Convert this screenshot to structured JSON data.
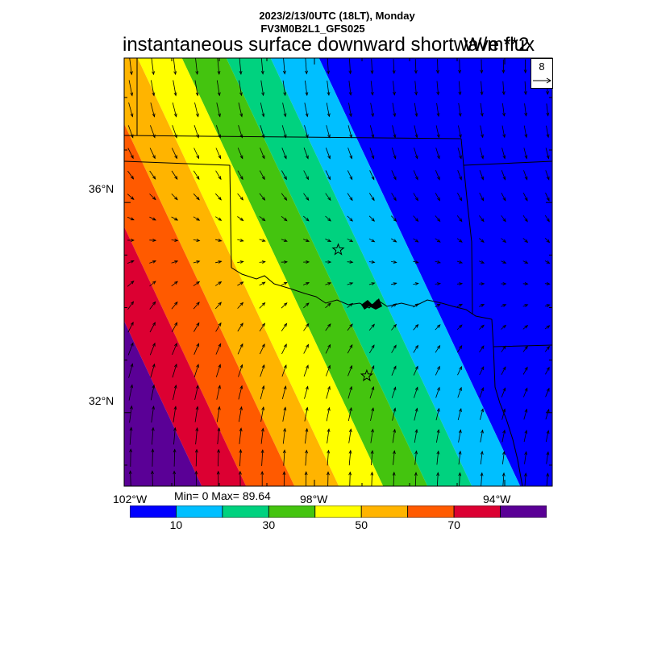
{
  "header": {
    "line1": "2023/2/13/0UTC (18LT), Monday",
    "line2": "FV3M0B2L1_GFS025",
    "title": "instantaneous surface downward shortwave flux",
    "units": "W/m**2"
  },
  "stats": "Min= 0 Max= 89.64",
  "ref_vector": {
    "value": "8"
  },
  "axes": {
    "lat_labels": [
      {
        "text": "36°N",
        "lat": 36
      },
      {
        "text": "32°N",
        "lat": 32
      }
    ],
    "lon_labels": [
      {
        "text": "102°W",
        "lon": -102
      },
      {
        "text": "98°W",
        "lon": -98
      },
      {
        "text": "94°W",
        "lon": -94
      }
    ]
  },
  "map_extent": {
    "lon_min": -102,
    "lon_max": -93.0,
    "lat_min": 30.6,
    "lat_max": 38.75
  },
  "colorbar": {
    "colors": [
      "#0000ff",
      "#00bfff",
      "#00d27f",
      "#44c40f",
      "#ffff00",
      "#ffb400",
      "#ff5a00",
      "#dc0032",
      "#5a0096"
    ],
    "bounds": [
      0,
      10,
      20,
      30,
      40,
      50,
      60,
      70,
      80,
      90
    ],
    "labels": [
      {
        "text": "10",
        "value": 10
      },
      {
        "text": "30",
        "value": 30
      },
      {
        "text": "50",
        "value": 50
      },
      {
        "text": "70",
        "value": 70
      }
    ]
  },
  "markers": [
    {
      "name": "star-marker-oklahoma-city",
      "lon": -97.5,
      "lat": 35.1
    },
    {
      "name": "star-marker-dallas",
      "lon": -96.9,
      "lat": 32.7
    }
  ]
}
